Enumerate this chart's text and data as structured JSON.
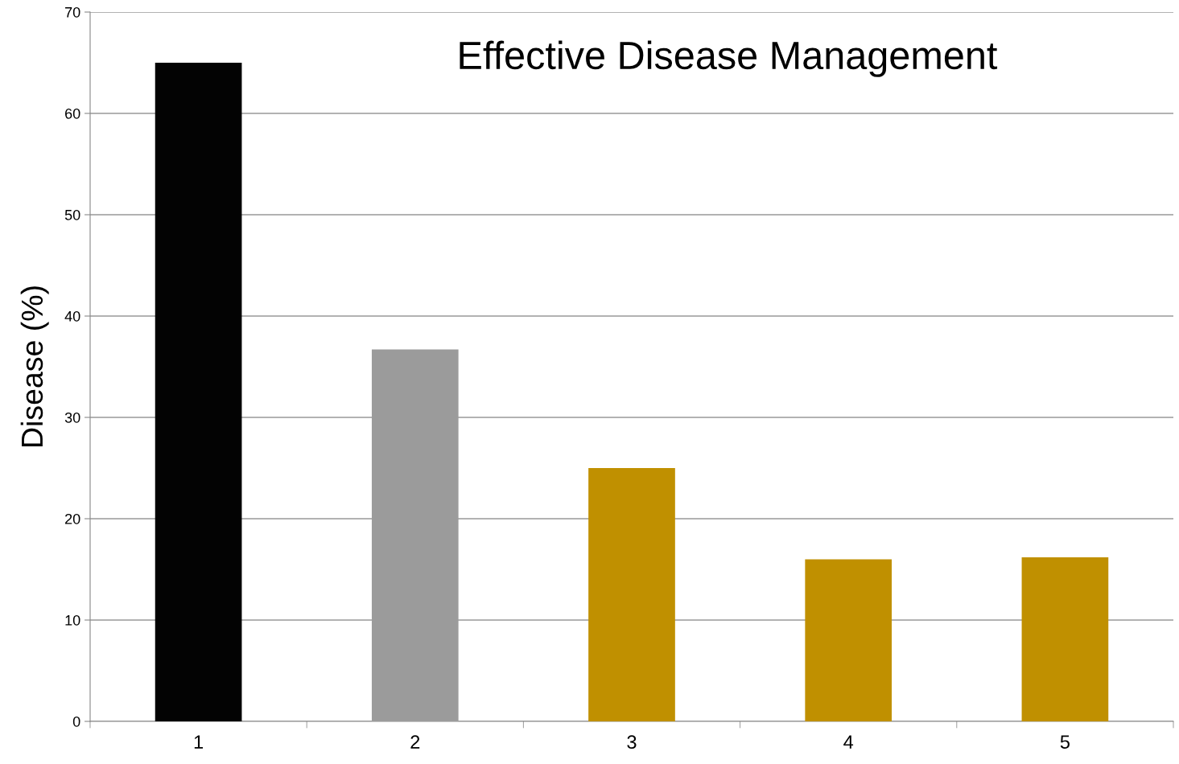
{
  "chart_data": {
    "type": "bar",
    "title": "Effective Disease Management",
    "ylabel": "Disease (%)",
    "categories": [
      "1",
      "2",
      "3",
      "4",
      "5"
    ],
    "values": [
      65.0,
      36.7,
      25.0,
      16.0,
      16.2
    ],
    "colors": [
      "#030303",
      "#9b9b9b",
      "#c09000",
      "#c09000",
      "#c09000"
    ],
    "ylim": [
      0,
      70
    ],
    "yticks": [
      0,
      10,
      20,
      30,
      40,
      50,
      60,
      70
    ],
    "grid": "y"
  }
}
